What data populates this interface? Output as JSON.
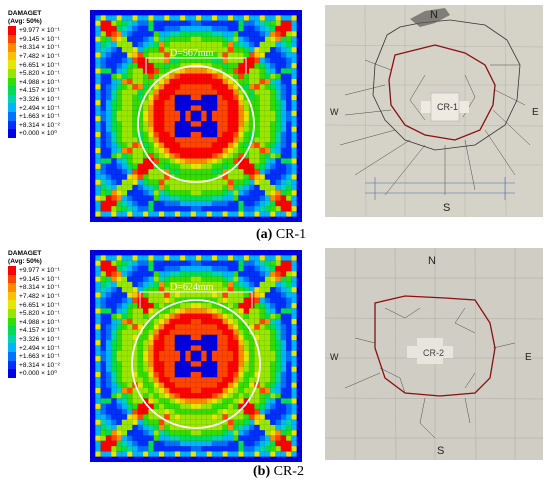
{
  "legend": {
    "title_line1": "DAMAGET",
    "title_line2": "(Avg: 50%)",
    "entries": [
      {
        "label": "+9.977 × 10⁻¹",
        "color": "#ff0000"
      },
      {
        "label": "+9.145 × 10⁻¹",
        "color": "#ff4500"
      },
      {
        "label": "+8.314 × 10⁻¹",
        "color": "#ff8c00"
      },
      {
        "label": "+7.482 × 10⁻¹",
        "color": "#ffbf00"
      },
      {
        "label": "+6.651 × 10⁻¹",
        "color": "#e6e600"
      },
      {
        "label": "+5.820 × 10⁻¹",
        "color": "#99e600"
      },
      {
        "label": "+4.988 × 10⁻¹",
        "color": "#33dd00"
      },
      {
        "label": "+4.157 × 10⁻¹",
        "color": "#00dd55"
      },
      {
        "label": "+3.326 × 10⁻¹",
        "color": "#00d4b0"
      },
      {
        "label": "+2.494 × 10⁻¹",
        "color": "#00b4ff"
      },
      {
        "label": "+1.663 × 10⁻¹",
        "color": "#0070ff"
      },
      {
        "label": "+8.314 × 10⁻²",
        "color": "#0030ff"
      },
      {
        "label": "+0.000 × 10⁰",
        "color": "#0000e0"
      }
    ]
  },
  "panels": [
    {
      "dimension": "D=567mm",
      "caption_letter": "(a)",
      "caption_text": " CR-1",
      "specimen_label": "CR-1",
      "compass": {
        "n": "N",
        "s": "S",
        "e": "E",
        "w": "W"
      }
    },
    {
      "dimension": "D=624mm",
      "caption_letter": "(b)",
      "caption_text": " CR-2",
      "specimen_label": "CR-2",
      "compass": {
        "n": "N",
        "s": "S",
        "e": "E",
        "w": "W"
      }
    }
  ]
}
